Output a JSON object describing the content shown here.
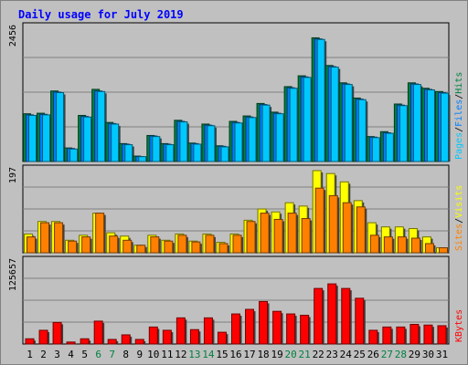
{
  "chart_data": {
    "type": "bar",
    "title": "Daily usage for July 2019",
    "categories": [
      "1",
      "2",
      "3",
      "4",
      "5",
      "6",
      "7",
      "8",
      "9",
      "10",
      "11",
      "12",
      "13",
      "14",
      "15",
      "16",
      "17",
      "18",
      "19",
      "20",
      "21",
      "22",
      "23",
      "24",
      "25",
      "26",
      "27",
      "28",
      "29",
      "30",
      "31"
    ],
    "weekend_days": [
      "6",
      "7",
      "13",
      "14",
      "20",
      "21",
      "27",
      "28"
    ],
    "colors": {
      "title": "#0000ff",
      "background": "#c0c0c0",
      "grid": "#808080",
      "weekday": "#000000",
      "weekend": "#008040",
      "pages": "#00c8ff",
      "files": "#0080ff",
      "hits": "#008040",
      "sites": "#ff8000",
      "visits": "#ffff00",
      "kbytes": "#ff0000"
    },
    "panels": [
      {
        "id": "top",
        "ymax_label": "2456",
        "ymax": 2456,
        "legend": [
          {
            "label": "Pages",
            "color": "#00c8ff"
          },
          {
            "label": "Files",
            "color": "#0080ff"
          },
          {
            "label": "Hits",
            "color": "#008040"
          }
        ],
        "series": [
          {
            "name": "Hits",
            "color": "#008040",
            "values": [
              880,
              890,
              1300,
              250,
              850,
              1330,
              720,
              330,
              100,
              480,
              330,
              760,
              340,
              690,
              290,
              740,
              840,
              1070,
              910,
              1380,
              1580,
              2280,
              1770,
              1450,
              1170,
              460,
              550,
              1060,
              1450,
              1350,
              1290
            ]
          },
          {
            "name": "Files",
            "color": "#0080ff",
            "values": [
              860,
              870,
              1280,
              240,
              830,
              1300,
              700,
              320,
              90,
              470,
              320,
              740,
              330,
              670,
              280,
              720,
              820,
              1050,
              890,
              1360,
              1560,
              2260,
              1750,
              1430,
              1150,
              450,
              530,
              1040,
              1430,
              1330,
              1270
            ]
          },
          {
            "name": "Pages",
            "color": "#00c8ff",
            "values": [
              850,
              860,
              1270,
              230,
              820,
              1290,
              690,
              310,
              90,
              460,
              310,
              730,
              320,
              660,
              270,
              710,
              810,
              1040,
              880,
              1350,
              1550,
              2250,
              1740,
              1420,
              1140,
              440,
              520,
              1030,
              1420,
              1320,
              1260
            ]
          }
        ]
      },
      {
        "id": "middle",
        "ymax_label": "197",
        "ymax": 197,
        "legend": [
          {
            "label": "Sites",
            "color": "#ff8000"
          },
          {
            "label": "Visits",
            "color": "#ffff00"
          }
        ],
        "series": [
          {
            "name": "Visits",
            "color": "#ffff00",
            "values": [
              45,
              75,
              75,
              30,
              42,
              95,
              48,
              40,
              18,
              42,
              30,
              45,
              28,
              45,
              25,
              45,
              78,
              105,
              98,
              120,
              112,
              197,
              190,
              170,
              125,
              72,
              62,
              62,
              58,
              38,
              12
            ]
          },
          {
            "name": "Sites",
            "color": "#ff8000",
            "values": [
              38,
              72,
              72,
              28,
              38,
              95,
              40,
              30,
              18,
              38,
              28,
              42,
              26,
              42,
              22,
              42,
              75,
              95,
              80,
              95,
              82,
              155,
              137,
              120,
              110,
              42,
              38,
              38,
              35,
              22,
              12
            ]
          }
        ]
      },
      {
        "id": "bottom",
        "ymax_label": "125657",
        "ymax": 125657,
        "legend": [
          {
            "label": "KBytes",
            "color": "#ff0000"
          }
        ],
        "series": [
          {
            "name": "KBytes",
            "color": "#ff0000",
            "values": [
              8000,
              21000,
              33000,
              3000,
              8000,
              35000,
              7000,
              14000,
              7000,
              26000,
              21000,
              40000,
              22000,
              40000,
              18000,
              46000,
              53000,
              65000,
              50000,
              46000,
              44000,
              85000,
              92000,
              85000,
              70000,
              21000,
              26000,
              26000,
              30000,
              29000,
              28000
            ]
          }
        ]
      }
    ]
  }
}
